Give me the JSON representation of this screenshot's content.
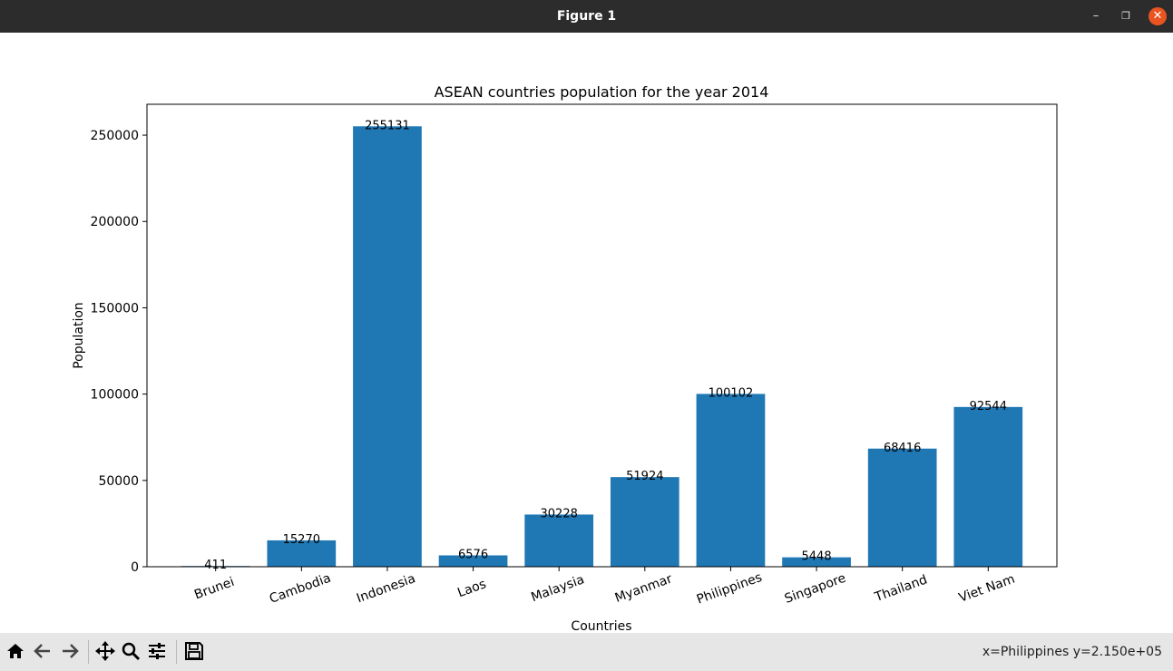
{
  "window": {
    "title": "Figure 1"
  },
  "toolbar": {
    "tools": [
      "home-icon",
      "back-icon",
      "forward-icon",
      "pan-icon",
      "zoom-icon",
      "configure-subplots-icon",
      "save-icon"
    ],
    "coords_text": "x=Philippines y=2.150e+05"
  },
  "chart_data": {
    "type": "bar",
    "title": "ASEAN countries population for the year 2014",
    "xlabel": "Countries",
    "ylabel": "Population",
    "categories": [
      "Brunei",
      "Cambodia",
      "Indonesia",
      "Laos",
      "Malaysia",
      "Myanmar",
      "Philippines",
      "Singapore",
      "Thailand",
      "Viet Nam"
    ],
    "values": [
      411,
      15270,
      255131,
      6576,
      30228,
      51924,
      100102,
      5448,
      68416,
      92544
    ],
    "ylim": [
      0,
      267888
    ],
    "yticks": [
      0,
      50000,
      100000,
      150000,
      200000,
      250000
    ],
    "grid": false,
    "bar_color": "#1f77b4",
    "data_labels": true
  }
}
